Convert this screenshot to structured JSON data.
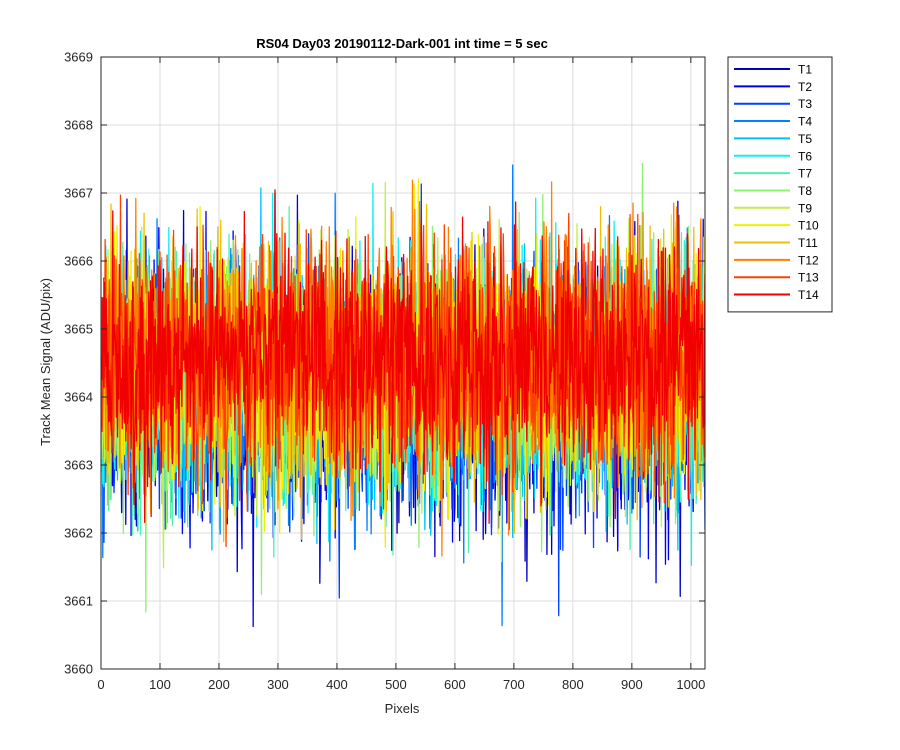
{
  "chart_data": {
    "type": "line",
    "title": "RS04 Day03 20190112-Dark-001 int time = 5 sec",
    "xlabel": "Pixels",
    "ylabel": "Track Mean Signal (ADU/pix)",
    "xlim": [
      0,
      1024
    ],
    "ylim": [
      3660,
      3669
    ],
    "xticks": [
      0,
      100,
      200,
      300,
      400,
      500,
      600,
      700,
      800,
      900,
      1000
    ],
    "yticks": [
      3660,
      3661,
      3662,
      3663,
      3664,
      3665,
      3666,
      3667,
      3668,
      3669
    ],
    "grid": true,
    "legend_position": "outside top-right",
    "x": {
      "start": 1,
      "end": 1024,
      "step": 1
    },
    "series": [
      {
        "name": "T1",
        "color": "#0000C0",
        "mean": 3663.9,
        "spread": 0.95
      },
      {
        "name": "T2",
        "color": "#0000F0",
        "mean": 3663.95,
        "spread": 0.95
      },
      {
        "name": "T3",
        "color": "#0040FF",
        "mean": 3664.0,
        "spread": 0.95
      },
      {
        "name": "T4",
        "color": "#0080FF",
        "mean": 3664.1,
        "spread": 0.95
      },
      {
        "name": "T5",
        "color": "#00C0FF",
        "mean": 3664.15,
        "spread": 0.95
      },
      {
        "name": "T6",
        "color": "#10F0F0",
        "mean": 3664.2,
        "spread": 0.95
      },
      {
        "name": "T7",
        "color": "#50F0B0",
        "mean": 3664.25,
        "spread": 0.95
      },
      {
        "name": "T8",
        "color": "#90F070",
        "mean": 3664.3,
        "spread": 0.95
      },
      {
        "name": "T9",
        "color": "#C0F040",
        "mean": 3664.35,
        "spread": 0.95
      },
      {
        "name": "T10",
        "color": "#F0F000",
        "mean": 3664.4,
        "spread": 0.95
      },
      {
        "name": "T11",
        "color": "#F0C000",
        "mean": 3664.45,
        "spread": 0.95
      },
      {
        "name": "T12",
        "color": "#FF8000",
        "mean": 3664.5,
        "spread": 0.95
      },
      {
        "name": "T13",
        "color": "#FF4000",
        "mean": 3664.55,
        "spread": 0.95
      },
      {
        "name": "T14",
        "color": "#F00000",
        "mean": 3664.6,
        "spread": 0.95
      }
    ]
  }
}
